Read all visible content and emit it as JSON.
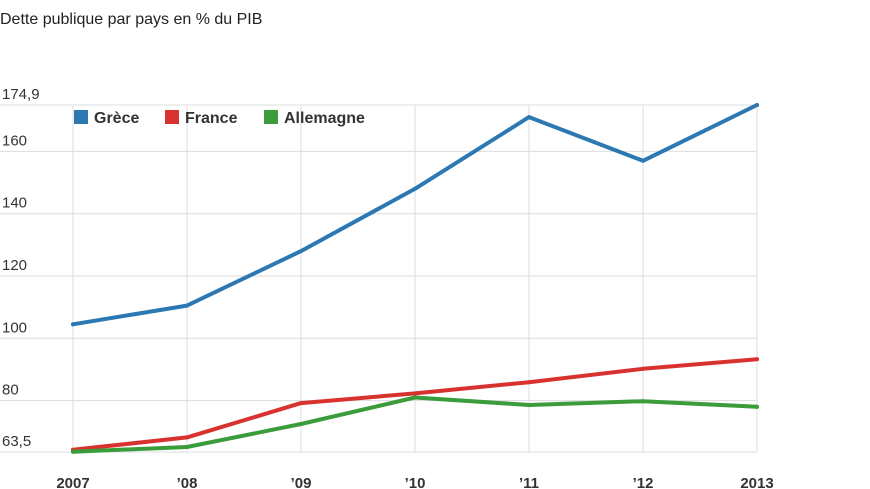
{
  "chart_data": {
    "type": "line",
    "title": "Dette publique par pays en % du PIB",
    "xlabel": "",
    "ylabel": "",
    "categories": [
      "2007",
      "’08",
      "’09",
      "’10",
      "’11",
      "’12",
      "2013"
    ],
    "ylim": [
      63.5,
      174.9
    ],
    "yticks": [
      63.5,
      80,
      100,
      120,
      140,
      160,
      174.9
    ],
    "ytick_labels": [
      "63,5",
      "80",
      "100",
      "120",
      "140",
      "160",
      "174,9"
    ],
    "grid": true,
    "legend_position": "top-left",
    "series": [
      {
        "name": "Grèce",
        "color": "#2b78b3",
        "values": [
          104.5,
          110.5,
          128,
          148,
          171,
          157,
          174.9
        ]
      },
      {
        "name": "France",
        "color": "#d8322f",
        "values": [
          64.2,
          68.2,
          79.2,
          82.3,
          85.9,
          90.2,
          93.3
        ]
      },
      {
        "name": "Allemagne",
        "color": "#3a9c3a",
        "values": [
          63.6,
          65.1,
          72.5,
          81.0,
          78.6,
          79.8,
          78.0
        ]
      }
    ]
  }
}
